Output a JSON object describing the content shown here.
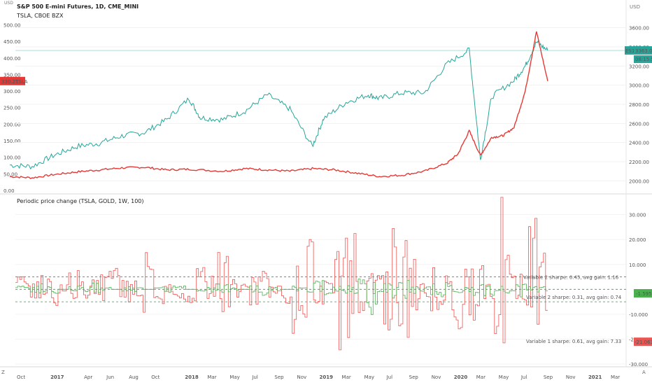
{
  "top_panel": {
    "title": "S&P 500 E-mini Futures, 1D, CME_MINI",
    "overlay_title": "TSLA, CBOE BZX",
    "left_unit": "USD",
    "right_unit": "USD",
    "left_ticks": [
      "500.00",
      "450.00",
      "400.00",
      "350.00",
      "300.00",
      "250.00",
      "200.00",
      "150.00",
      "100.00",
      "50.00",
      "0.00"
    ],
    "right_ticks": [
      "3600.00",
      "3400.00",
      "3200.00",
      "3000.00",
      "2800.00",
      "2600.00",
      "2400.00",
      "2200.00",
      "2000.00"
    ],
    "es_badge": "ES1!",
    "es_price": "3363.00",
    "es_timer": "08:15:56",
    "tsla_price": "330.21",
    "tsla_label": "TSLA",
    "colors": {
      "es": "#26a69a",
      "tsla": "#e53935",
      "badge": "#26a69a"
    }
  },
  "bottom_panel": {
    "title": "Periodic price change (TSLA, GOLD, 1W, 100)",
    "right_ticks": [
      "30.000",
      "20.000",
      "10.000",
      "-10.000",
      "-20.000",
      "-30.000"
    ],
    "annotations": {
      "green": "Variable 2 sharpe: 0.45, avg gain: 1.16",
      "blue": "Variable 2 sharpe: 0.31, avg gain: 0.74",
      "red": "Variable 1 sharpe: 0.61, avg gain: 7.33"
    },
    "badges": {
      "green": "-1.595",
      "red": "-21.063"
    },
    "colors": {
      "green": "#4caf50",
      "red": "#ef5350",
      "blue": "#2196f3"
    }
  },
  "x_axis": [
    "Oct",
    "2017",
    "Apr",
    "Jun",
    "Aug",
    "Oct",
    "2018",
    "Mar",
    "May",
    "Jul",
    "Sep",
    "Nov",
    "2019",
    "Mar",
    "May",
    "Jul",
    "Sep",
    "Nov",
    "2020",
    "Mar",
    "May",
    "Jul",
    "Sep",
    "Nov",
    "2021",
    "Mar"
  ],
  "corner_label": "Z",
  "corner_icon": "A",
  "chart_data": [
    {
      "type": "line",
      "title": "S&P 500 E-mini Futures, 1D, CME_MINI",
      "series": [
        {
          "name": "ES1!",
          "axis": "right",
          "x": [
            "2016-09",
            "2016-11",
            "2017-01",
            "2017-03",
            "2017-05",
            "2017-07",
            "2017-09",
            "2017-11",
            "2018-01",
            "2018-02",
            "2018-04",
            "2018-06",
            "2018-08",
            "2018-10",
            "2018-12",
            "2019-01",
            "2019-03",
            "2019-05",
            "2019-06",
            "2019-08",
            "2019-10",
            "2019-12",
            "2020-02",
            "2020-03",
            "2020-04",
            "2020-06",
            "2020-07",
            "2020-08",
            "2020-09"
          ],
          "values": [
            2165,
            2150,
            2270,
            2360,
            2395,
            2470,
            2505,
            2640,
            2860,
            2660,
            2640,
            2730,
            2900,
            2750,
            2360,
            2650,
            2820,
            2900,
            2860,
            2920,
            2920,
            3220,
            3370,
            2220,
            2880,
            3050,
            3200,
            3450,
            3363
          ]
        },
        {
          "name": "TSLA",
          "axis": "left",
          "x": [
            "2016-09",
            "2016-11",
            "2017-01",
            "2017-03",
            "2017-05",
            "2017-07",
            "2017-09",
            "2017-11",
            "2018-01",
            "2018-04",
            "2018-06",
            "2018-08",
            "2018-10",
            "2018-12",
            "2019-02",
            "2019-04",
            "2019-06",
            "2019-08",
            "2019-10",
            "2019-12",
            "2020-01",
            "2020-02",
            "2020-03",
            "2020-04",
            "2020-05",
            "2020-06",
            "2020-07",
            "2020-08",
            "2020-09"
          ],
          "values": [
            42,
            38,
            48,
            56,
            62,
            68,
            70,
            62,
            64,
            58,
            66,
            62,
            58,
            66,
            62,
            52,
            42,
            46,
            58,
            82,
            110,
            180,
            105,
            160,
            165,
            190,
            300,
            480,
            330
          ]
        }
      ],
      "left_ylim": [
        0,
        520
      ],
      "right_ylim": [
        1900,
        3700
      ]
    },
    {
      "type": "line",
      "title": "Periodic price change (TSLA, GOLD, 1W, 100)",
      "series": [
        {
          "name": "TSLA",
          "values": [
            4,
            -3,
            5,
            -8,
            2,
            6,
            -4,
            3,
            -10,
            8,
            -5,
            4,
            12,
            -6,
            3,
            -3,
            9,
            -12,
            5,
            14,
            -7,
            2,
            -9,
            6,
            -2,
            10,
            -14,
            18,
            -5,
            3,
            -20,
            27,
            -9,
            5,
            -12,
            21,
            -27,
            15,
            -3,
            12,
            -8,
            24,
            -11,
            20,
            -3,
            30,
            -18,
            6,
            25,
            -21
          ]
        },
        {
          "name": "GOLD",
          "values": [
            1,
            -1,
            2,
            -2,
            0,
            1,
            -1,
            2,
            -1,
            0,
            1,
            -1,
            0,
            1,
            -2,
            1,
            0,
            1,
            -1,
            2,
            -1,
            0,
            2,
            -2,
            1,
            0,
            1,
            -1,
            3,
            -2,
            1,
            -2,
            4,
            -8,
            2,
            -3,
            5,
            -2,
            1,
            3,
            -4,
            2,
            -1,
            4,
            -2,
            1,
            2,
            -3,
            1,
            -1.6
          ]
        }
      ],
      "ylim": [
        -30,
        33
      ],
      "levels": [
        5,
        0,
        -5
      ]
    }
  ]
}
